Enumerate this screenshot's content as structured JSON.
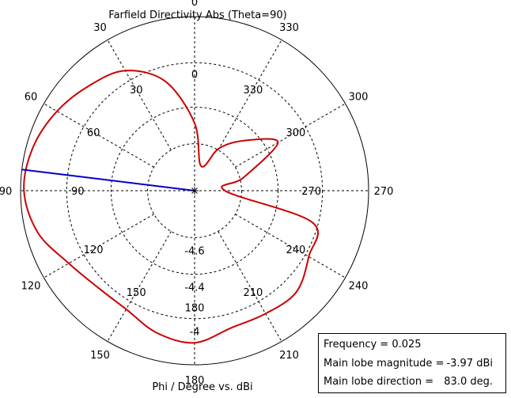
{
  "chart_data": {
    "type": "polar",
    "title": "Farfield Directivity Abs (Theta=90)",
    "xlabel": "Phi / Degree vs. dBi",
    "radial_range": [
      -5.0,
      -3.97
    ],
    "radial_tick_labels": [
      "-4.6",
      "-4.4",
      "-4"
    ],
    "outer_angle_labels": [
      "0",
      "30",
      "60",
      "90",
      "120",
      "150",
      "180",
      "210",
      "240",
      "270",
      "300",
      "330"
    ],
    "inner_angle_labels": [
      "0",
      "30",
      "60",
      "90",
      "120",
      "150",
      "180",
      "210",
      "240",
      "270",
      "300",
      "330"
    ],
    "series": [
      {
        "color": "#cc0000",
        "phi_deg": [
          0,
          15,
          30,
          45,
          60,
          75,
          90,
          105,
          120,
          135,
          150,
          165,
          180,
          195,
          210,
          225,
          240,
          255,
          270,
          285,
          300,
          315,
          330,
          345,
          360
        ],
        "value_dbi": [
          -4.6,
          -4.33,
          -4.18,
          -4.12,
          -4.06,
          -4.01,
          -3.99,
          -4.04,
          -4.14,
          -4.19,
          -4.19,
          -4.13,
          -4.1,
          -4.16,
          -4.16,
          -4.15,
          -4.22,
          -4.28,
          -4.82,
          -4.7,
          -4.43,
          -4.58,
          -4.71,
          -4.85,
          -4.6
        ]
      }
    ],
    "main_lobe": {
      "phi_deg": 83.0,
      "color": "#0000cc"
    }
  },
  "legend": {
    "frequency_label": "Frequency = 0.025",
    "magnitude_label": "Main lobe magnitude =",
    "magnitude_value": "-3.97 dBi",
    "direction_label": "Main lobe direction =",
    "direction_value": "83.0 deg."
  }
}
